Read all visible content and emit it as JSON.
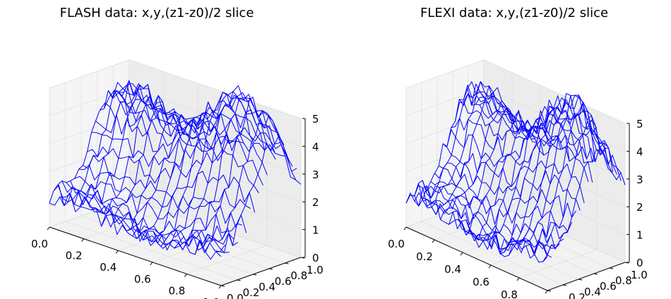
{
  "chart_data": [
    {
      "type": "line",
      "projection": "3d-wireframe",
      "title": "FLASH data: x,y,(z1-z0)/2 slice",
      "x_ticks": [
        "0.0",
        "0.2",
        "0.4",
        "0.6",
        "0.8",
        "1.0"
      ],
      "y_ticks": [
        "0.0",
        "0.2",
        "0.4",
        "0.6",
        "0.8",
        "1.0"
      ],
      "z_ticks": [
        "0",
        "1",
        "2",
        "3",
        "4",
        "5"
      ],
      "xlim": [
        0,
        1
      ],
      "ylim": [
        0,
        1
      ],
      "zlim": [
        0,
        5
      ],
      "line_color": "#0000ff",
      "grid": true,
      "wireframe_lines": 20,
      "surface": {
        "peaks": [
          {
            "x": 0.12,
            "y": 0.78,
            "height": 3.2,
            "width": 0.22
          },
          {
            "x": 0.78,
            "y": 0.72,
            "height": 4.4,
            "width": 0.24
          }
        ],
        "troughs": [
          {
            "x": 0.55,
            "y": 0.2,
            "depth": 0.8,
            "width": 0.2
          }
        ],
        "baseline": 1.2,
        "noise_amplitude": 0.35
      }
    },
    {
      "type": "line",
      "projection": "3d-wireframe",
      "title": "FLEXI data: x,y,(z1-z0)/2 slice",
      "x_ticks": [
        "0.0",
        "0.2",
        "0.4",
        "0.6",
        "0.8",
        "1.0"
      ],
      "y_ticks": [
        "0.0",
        "0.2",
        "0.4",
        "0.6",
        "0.8",
        "1.0"
      ],
      "z_ticks": [
        "0",
        "1",
        "2",
        "3",
        "4",
        "5"
      ],
      "xlim": [
        0,
        1
      ],
      "ylim": [
        0,
        1
      ],
      "zlim": [
        0,
        5
      ],
      "line_color": "#0000ff",
      "grid": true,
      "wireframe_lines": 20,
      "surface": {
        "peaks": [
          {
            "x": 0.12,
            "y": 0.78,
            "height": 3.2,
            "width": 0.22
          },
          {
            "x": 0.78,
            "y": 0.72,
            "height": 4.4,
            "width": 0.24
          }
        ],
        "troughs": [
          {
            "x": 0.55,
            "y": 0.2,
            "depth": 0.8,
            "width": 0.2
          }
        ],
        "baseline": 1.2,
        "noise_amplitude": 0.35
      }
    }
  ]
}
